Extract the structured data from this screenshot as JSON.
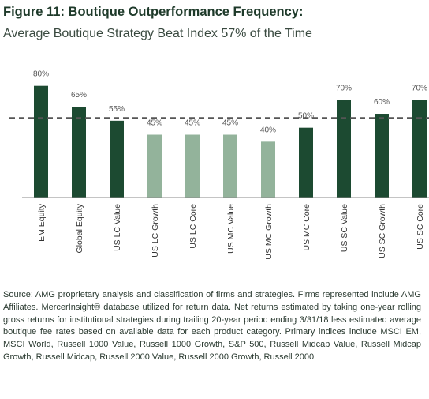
{
  "figure": {
    "title": "Figure 11: Boutique Outperformance Frequency:",
    "subtitle": "Average Boutique Strategy Beat Index 57% of the Time"
  },
  "source_note": "Source: AMG proprietary analysis and classification of firms and strategies. Firms represented include AMG Affiliates. MercerInsight® database utilized for return data. Net returns estimated by taking one-year rolling gross returns for institutional strategies during trailing 20-year period ending 3/31/18 less estimated average boutique fee rates based on available data for each product category. Primary indices include MSCI EM, MSCI World, Russell 1000 Value, Russell 1000 Growth, S&P 500, Russell Midcap Value, Russell Midcap Growth, Russell Midcap, Russell 2000 Value, Russell 2000 Growth, Russell 2000",
  "colors": {
    "dark_bar": "#1c4a31",
    "light_bar": "#93b39b",
    "average_line": "#555555"
  },
  "chart_data": {
    "type": "bar",
    "title": "Average Boutique Strategy Beat Index 57% of the Time",
    "xlabel": "",
    "ylabel": "",
    "categories": [
      "EM Equity",
      "Global Equity",
      "US LC Value",
      "US LC Growth",
      "US LC Core",
      "US MC Value",
      "US MC Growth",
      "US MC Core",
      "US SC Value",
      "US SC Growth",
      "US SC Core"
    ],
    "values": [
      80,
      65,
      55,
      45,
      45,
      45,
      40,
      50,
      70,
      60,
      70
    ],
    "data_labels": [
      "80%",
      "65%",
      "55%",
      "45%",
      "45%",
      "45%",
      "40%",
      "50%",
      "70%",
      "60%",
      "70%"
    ],
    "shading": [
      "dark",
      "dark",
      "dark",
      "light",
      "light",
      "light",
      "light",
      "dark",
      "dark",
      "dark",
      "dark"
    ],
    "average_line": 57,
    "ylim": [
      0,
      100
    ],
    "grid": false,
    "legend": "none"
  }
}
